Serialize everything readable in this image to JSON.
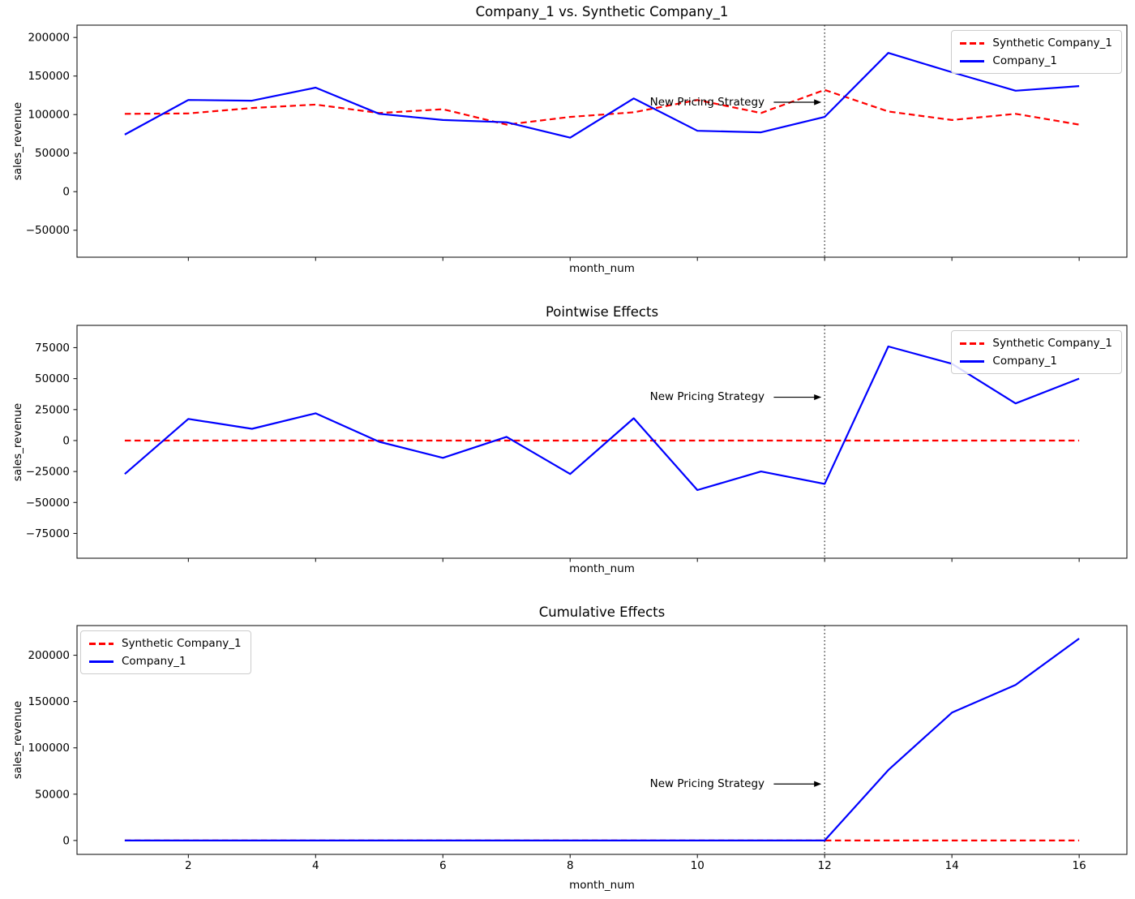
{
  "legend": {
    "synthetic_label": "Synthetic Company_1",
    "company_label": "Company_1"
  },
  "annotation": {
    "label": "New Pricing Strategy"
  },
  "colors": {
    "synthetic": "#ff0000",
    "company": "#0000ff",
    "vline": "#3c3c3c",
    "arrow": "#000000",
    "axis": "#1a1a1a"
  },
  "chart_data": [
    {
      "type": "line",
      "title": "Company_1 vs. Synthetic Company_1",
      "xlabel": "month_num",
      "ylabel": "sales_revenue",
      "x": [
        1,
        2,
        3,
        4,
        5,
        6,
        7,
        8,
        9,
        10,
        11,
        12,
        13,
        14,
        15,
        16
      ],
      "series": [
        {
          "name": "Synthetic Company_1",
          "color": "#ff0000",
          "style": "dashed",
          "values": [
            101000,
            101500,
            108500,
            113000,
            102000,
            107000,
            87000,
            97000,
            103000,
            119000,
            102000,
            132000,
            104000,
            93000,
            101000,
            87000
          ]
        },
        {
          "name": "Company_1",
          "color": "#0000ff",
          "style": "solid",
          "values": [
            74000,
            119000,
            118000,
            135000,
            101000,
            93000,
            90000,
            70000,
            121000,
            79000,
            77000,
            97000,
            180000,
            155000,
            131000,
            137000
          ]
        }
      ],
      "xlim": [
        0.25,
        16.75
      ],
      "ylim": [
        -85000,
        216000
      ],
      "yticks": [
        {
          "v": -50000,
          "label": "−50000"
        },
        {
          "v": 0,
          "label": "0"
        },
        {
          "v": 50000,
          "label": "50000"
        },
        {
          "v": 100000,
          "label": "100000"
        },
        {
          "v": 150000,
          "label": "150000"
        },
        {
          "v": 200000,
          "label": "200000"
        }
      ],
      "xticks": [
        {
          "v": 2,
          "label": "2"
        },
        {
          "v": 4,
          "label": "4"
        },
        {
          "v": 6,
          "label": "6"
        },
        {
          "v": 8,
          "label": "8"
        },
        {
          "v": 10,
          "label": "10"
        },
        {
          "v": 12,
          "label": "12"
        },
        {
          "v": 14,
          "label": "14"
        },
        {
          "v": 16,
          "label": "16"
        }
      ],
      "show_xtick_labels": false,
      "vline_x": 12,
      "annotation": {
        "text": "New Pricing Strategy",
        "x": 12,
        "y": 116000
      },
      "legend_loc": "upper-right",
      "grid": false
    },
    {
      "type": "line",
      "title": "Pointwise Effects",
      "xlabel": "month_num",
      "ylabel": "sales_revenue",
      "x": [
        1,
        2,
        3,
        4,
        5,
        6,
        7,
        8,
        9,
        10,
        11,
        12,
        13,
        14,
        15,
        16
      ],
      "series": [
        {
          "name": "Synthetic Company_1",
          "color": "#ff0000",
          "style": "dashed",
          "values": [
            0,
            0,
            0,
            0,
            0,
            0,
            0,
            0,
            0,
            0,
            0,
            0,
            0,
            0,
            0,
            0
          ]
        },
        {
          "name": "Company_1",
          "color": "#0000ff",
          "style": "solid",
          "values": [
            -27000,
            17500,
            9500,
            22000,
            -1000,
            -14000,
            3000,
            -27000,
            18000,
            -40000,
            -25000,
            -35000,
            76000,
            62000,
            30000,
            50000
          ]
        }
      ],
      "xlim": [
        0.25,
        16.75
      ],
      "ylim": [
        -95000,
        93000
      ],
      "yticks": [
        {
          "v": -75000,
          "label": "−75000"
        },
        {
          "v": -50000,
          "label": "−50000"
        },
        {
          "v": -25000,
          "label": "−25000"
        },
        {
          "v": 0,
          "label": "0"
        },
        {
          "v": 25000,
          "label": "25000"
        },
        {
          "v": 50000,
          "label": "50000"
        },
        {
          "v": 75000,
          "label": "75000"
        }
      ],
      "xticks": [
        {
          "v": 2,
          "label": "2"
        },
        {
          "v": 4,
          "label": "4"
        },
        {
          "v": 6,
          "label": "6"
        },
        {
          "v": 8,
          "label": "8"
        },
        {
          "v": 10,
          "label": "10"
        },
        {
          "v": 12,
          "label": "12"
        },
        {
          "v": 14,
          "label": "14"
        },
        {
          "v": 16,
          "label": "16"
        }
      ],
      "show_xtick_labels": false,
      "vline_x": 12,
      "annotation": {
        "text": "New Pricing Strategy",
        "x": 12,
        "y": 35000
      },
      "legend_loc": "upper-right",
      "grid": false
    },
    {
      "type": "line",
      "title": "Cumulative Effects",
      "xlabel": "month_num",
      "ylabel": "sales_revenue",
      "x": [
        1,
        2,
        3,
        4,
        5,
        6,
        7,
        8,
        9,
        10,
        11,
        12,
        13,
        14,
        15,
        16
      ],
      "series": [
        {
          "name": "Synthetic Company_1",
          "color": "#ff0000",
          "style": "dashed",
          "values": [
            0,
            0,
            0,
            0,
            0,
            0,
            0,
            0,
            0,
            0,
            0,
            0,
            0,
            0,
            0,
            0
          ]
        },
        {
          "name": "Company_1",
          "color": "#0000ff",
          "style": "solid",
          "values": [
            0,
            0,
            0,
            0,
            0,
            0,
            0,
            0,
            0,
            0,
            0,
            0,
            76000,
            138000,
            168000,
            218000
          ]
        }
      ],
      "xlim": [
        0.25,
        16.75
      ],
      "ylim": [
        -15000,
        232000
      ],
      "yticks": [
        {
          "v": 0,
          "label": "0"
        },
        {
          "v": 50000,
          "label": "50000"
        },
        {
          "v": 100000,
          "label": "100000"
        },
        {
          "v": 150000,
          "label": "150000"
        },
        {
          "v": 200000,
          "label": "200000"
        }
      ],
      "xticks": [
        {
          "v": 2,
          "label": "2"
        },
        {
          "v": 4,
          "label": "4"
        },
        {
          "v": 6,
          "label": "6"
        },
        {
          "v": 8,
          "label": "8"
        },
        {
          "v": 10,
          "label": "10"
        },
        {
          "v": 12,
          "label": "12"
        },
        {
          "v": 14,
          "label": "14"
        },
        {
          "v": 16,
          "label": "16"
        }
      ],
      "show_xtick_labels": true,
      "vline_x": 12,
      "annotation": {
        "text": "New Pricing Strategy",
        "x": 12,
        "y": 61000
      },
      "legend_loc": "upper-left",
      "grid": false
    }
  ]
}
